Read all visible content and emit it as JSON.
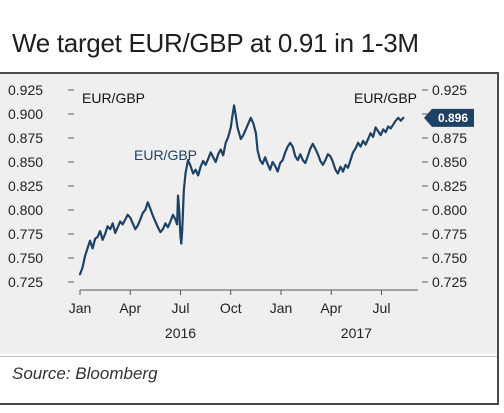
{
  "title": "We target EUR/GBP at 0.91 in 1-3M",
  "source": "Source: Bloomberg",
  "colors": {
    "line": "#1d4266",
    "background": "#efefef",
    "badge": "#1d4266"
  },
  "chart_data": {
    "type": "line",
    "y_ticks": [
      "0.925",
      "0.900",
      "0.875",
      "0.850",
      "0.825",
      "0.800",
      "0.775",
      "0.750",
      "0.725"
    ],
    "y_tick_values": [
      0.925,
      0.9,
      0.875,
      0.85,
      0.825,
      0.8,
      0.775,
      0.75,
      0.725
    ],
    "ylim": [
      0.725,
      0.925
    ],
    "x_ticks": [
      "Jan",
      "Apr",
      "Jul",
      "Oct",
      "Jan",
      "Apr",
      "Jul"
    ],
    "x_tick_months": [
      0,
      3,
      6,
      9,
      12,
      15,
      18
    ],
    "year_labels": [
      {
        "label": "2016",
        "month": 6
      },
      {
        "label": "2017",
        "month": 16.5
      }
    ],
    "xlim": [
      0,
      20
    ],
    "left_series_label": "EUR/GBP",
    "right_series_label": "EUR/GBP",
    "series_label": "EUR/GBP",
    "last_value_label": "0.896",
    "last_value": 0.896,
    "series": [
      {
        "points": [
          [
            0.0,
            0.733
          ],
          [
            0.15,
            0.74
          ],
          [
            0.3,
            0.752
          ],
          [
            0.45,
            0.76
          ],
          [
            0.6,
            0.768
          ],
          [
            0.75,
            0.76
          ],
          [
            0.9,
            0.77
          ],
          [
            1.05,
            0.772
          ],
          [
            1.2,
            0.778
          ],
          [
            1.35,
            0.769
          ],
          [
            1.5,
            0.775
          ],
          [
            1.65,
            0.783
          ],
          [
            1.8,
            0.78
          ],
          [
            1.95,
            0.786
          ],
          [
            2.1,
            0.776
          ],
          [
            2.25,
            0.782
          ],
          [
            2.4,
            0.788
          ],
          [
            2.55,
            0.785
          ],
          [
            2.7,
            0.79
          ],
          [
            2.85,
            0.795
          ],
          [
            3.0,
            0.792
          ],
          [
            3.15,
            0.786
          ],
          [
            3.3,
            0.78
          ],
          [
            3.45,
            0.784
          ],
          [
            3.6,
            0.79
          ],
          [
            3.75,
            0.797
          ],
          [
            3.9,
            0.8
          ],
          [
            4.05,
            0.808
          ],
          [
            4.2,
            0.801
          ],
          [
            4.35,
            0.794
          ],
          [
            4.5,
            0.788
          ],
          [
            4.65,
            0.782
          ],
          [
            4.8,
            0.777
          ],
          [
            4.95,
            0.78
          ],
          [
            5.1,
            0.786
          ],
          [
            5.25,
            0.782
          ],
          [
            5.4,
            0.788
          ],
          [
            5.55,
            0.795
          ],
          [
            5.7,
            0.79
          ],
          [
            5.8,
            0.785
          ],
          [
            5.85,
            0.815
          ],
          [
            5.92,
            0.8
          ],
          [
            6.0,
            0.772
          ],
          [
            6.05,
            0.765
          ],
          [
            6.1,
            0.778
          ],
          [
            6.2,
            0.82
          ],
          [
            6.3,
            0.838
          ],
          [
            6.45,
            0.852
          ],
          [
            6.6,
            0.846
          ],
          [
            6.75,
            0.838
          ],
          [
            6.9,
            0.842
          ],
          [
            7.05,
            0.836
          ],
          [
            7.2,
            0.845
          ],
          [
            7.35,
            0.851
          ],
          [
            7.5,
            0.847
          ],
          [
            7.65,
            0.853
          ],
          [
            7.8,
            0.86
          ],
          [
            7.95,
            0.855
          ],
          [
            8.1,
            0.85
          ],
          [
            8.25,
            0.858
          ],
          [
            8.4,
            0.863
          ],
          [
            8.55,
            0.857
          ],
          [
            8.7,
            0.87
          ],
          [
            8.85,
            0.876
          ],
          [
            9.0,
            0.886
          ],
          [
            9.1,
            0.898
          ],
          [
            9.2,
            0.909
          ],
          [
            9.3,
            0.898
          ],
          [
            9.4,
            0.886
          ],
          [
            9.5,
            0.88
          ],
          [
            9.6,
            0.874
          ],
          [
            9.75,
            0.878
          ],
          [
            9.9,
            0.884
          ],
          [
            10.05,
            0.89
          ],
          [
            10.2,
            0.896
          ],
          [
            10.35,
            0.89
          ],
          [
            10.5,
            0.88
          ],
          [
            10.6,
            0.862
          ],
          [
            10.75,
            0.852
          ],
          [
            10.9,
            0.848
          ],
          [
            11.05,
            0.855
          ],
          [
            11.2,
            0.848
          ],
          [
            11.35,
            0.842
          ],
          [
            11.5,
            0.85
          ],
          [
            11.65,
            0.846
          ],
          [
            11.8,
            0.84
          ],
          [
            11.95,
            0.849
          ],
          [
            12.1,
            0.852
          ],
          [
            12.25,
            0.86
          ],
          [
            12.4,
            0.866
          ],
          [
            12.55,
            0.87
          ],
          [
            12.7,
            0.866
          ],
          [
            12.85,
            0.856
          ],
          [
            13.0,
            0.852
          ],
          [
            13.15,
            0.858
          ],
          [
            13.3,
            0.852
          ],
          [
            13.45,
            0.849
          ],
          [
            13.6,
            0.856
          ],
          [
            13.75,
            0.864
          ],
          [
            13.9,
            0.869
          ],
          [
            14.05,
            0.864
          ],
          [
            14.2,
            0.858
          ],
          [
            14.35,
            0.851
          ],
          [
            14.5,
            0.847
          ],
          [
            14.65,
            0.852
          ],
          [
            14.8,
            0.858
          ],
          [
            14.95,
            0.856
          ],
          [
            15.1,
            0.85
          ],
          [
            15.25,
            0.842
          ],
          [
            15.4,
            0.838
          ],
          [
            15.55,
            0.845
          ],
          [
            15.7,
            0.84
          ],
          [
            15.85,
            0.847
          ],
          [
            16.0,
            0.844
          ],
          [
            16.15,
            0.852
          ],
          [
            16.3,
            0.86
          ],
          [
            16.45,
            0.864
          ],
          [
            16.6,
            0.87
          ],
          [
            16.75,
            0.866
          ],
          [
            16.9,
            0.872
          ],
          [
            17.05,
            0.868
          ],
          [
            17.2,
            0.874
          ],
          [
            17.35,
            0.88
          ],
          [
            17.5,
            0.876
          ],
          [
            17.65,
            0.886
          ],
          [
            17.8,
            0.882
          ],
          [
            17.95,
            0.878
          ],
          [
            18.1,
            0.884
          ],
          [
            18.25,
            0.881
          ],
          [
            18.4,
            0.887
          ],
          [
            18.55,
            0.885
          ],
          [
            18.7,
            0.889
          ],
          [
            18.85,
            0.893
          ],
          [
            19.0,
            0.896
          ],
          [
            19.15,
            0.893
          ],
          [
            19.3,
            0.896
          ]
        ]
      }
    ]
  }
}
